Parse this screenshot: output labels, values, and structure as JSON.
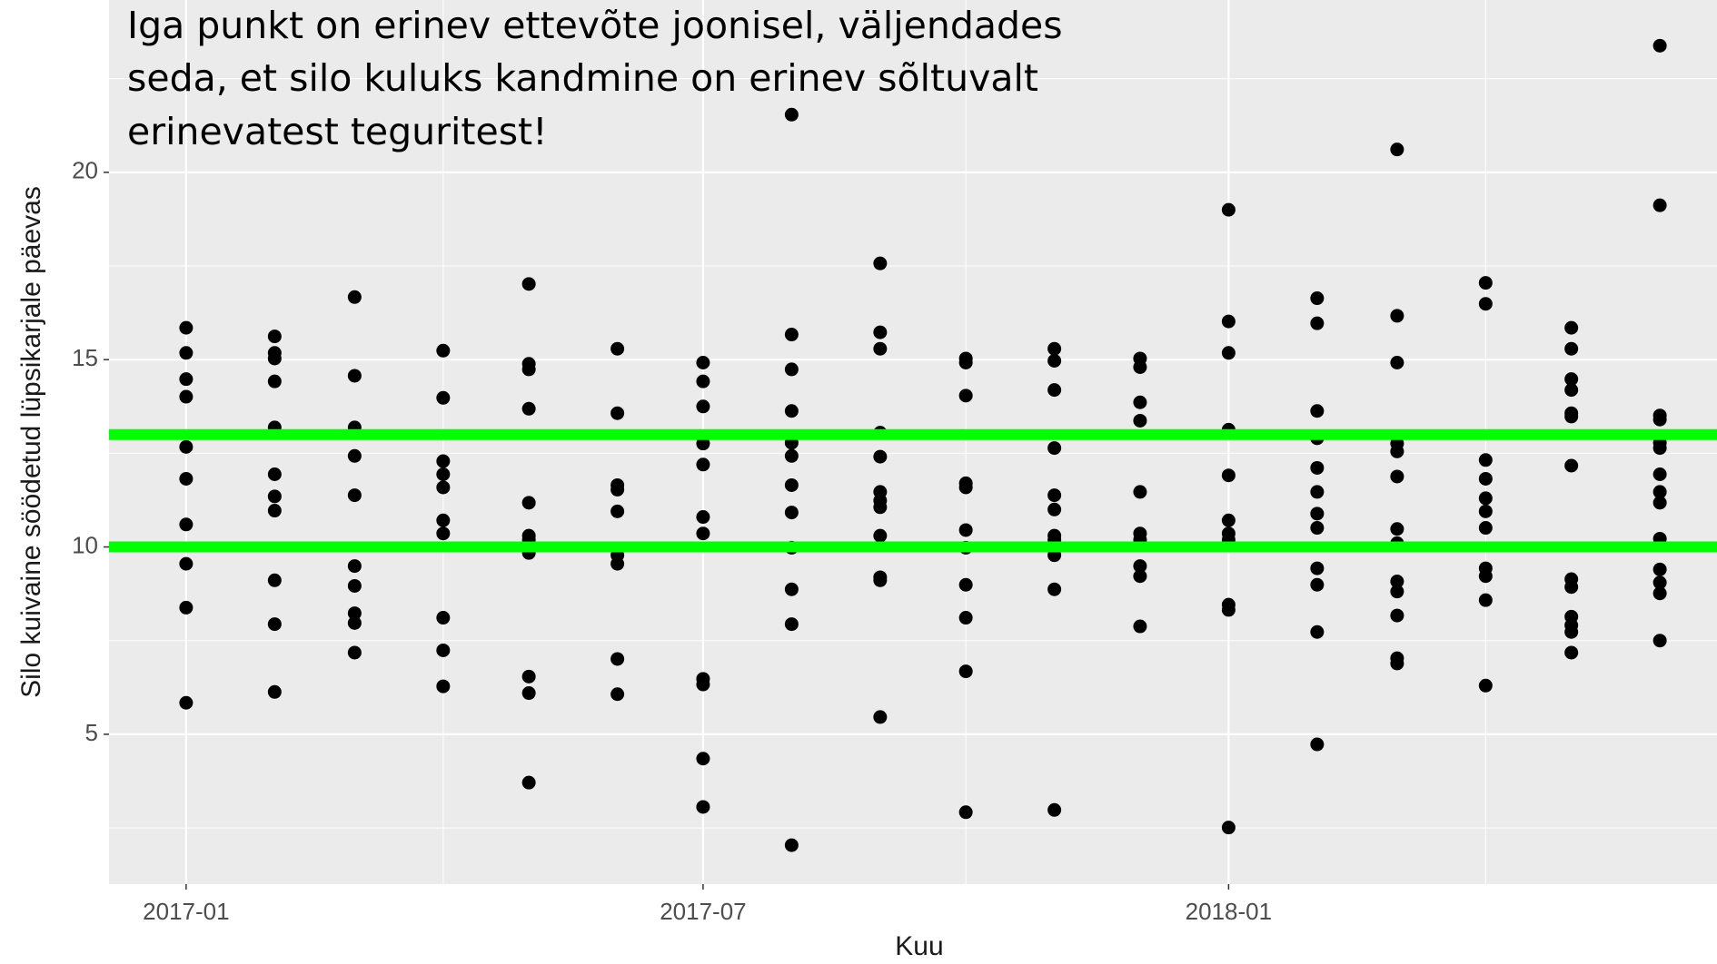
{
  "chart_data": {
    "type": "scatter",
    "annotation": [
      "Iga punkt on erinev ettevõte joonisel, väljendades",
      "seda, et silo kuluks kandmine on erinev sõltuvalt",
      "erinevatest teguritest!"
    ],
    "x_label": "Kuu",
    "y_label": "Silo kuivaine söödetud lüpsikarjale päevas",
    "x": [
      "2017-01",
      "2017-02",
      "2017-03",
      "2017-04",
      "2017-05",
      "2017-06",
      "2017-07",
      "2017-08",
      "2017-09",
      "2017-10",
      "2017-11",
      "2017-12",
      "2018-01",
      "2018-02",
      "2018-03",
      "2018-04",
      "2018-05",
      "2018-06"
    ],
    "values": [
      [
        15.85,
        15.18,
        14.48,
        14.01,
        12.67,
        11.82,
        10.6,
        9.55,
        8.38,
        5.84
      ],
      [
        15.62,
        15.18,
        15.03,
        14.42,
        13.19,
        11.94,
        11.35,
        10.97,
        9.11,
        7.94,
        6.13
      ],
      [
        16.67,
        14.57,
        13.19,
        12.43,
        11.38,
        9.49,
        8.96,
        8.23,
        7.97,
        7.18
      ],
      [
        15.24,
        13.98,
        12.29,
        11.94,
        11.59,
        10.71,
        10.36,
        8.11,
        7.24,
        6.28
      ],
      [
        17.02,
        14.89,
        14.74,
        13.69,
        11.18,
        10.3,
        10.19,
        9.84,
        6.54,
        6.1,
        3.71
      ],
      [
        15.29,
        13.57,
        11.65,
        11.53,
        10.95,
        9.78,
        9.55,
        7.01,
        6.07
      ],
      [
        14.92,
        14.42,
        13.75,
        12.76,
        12.2,
        10.8,
        10.36,
        6.48,
        6.33,
        4.35,
        3.06
      ],
      [
        21.54,
        15.67,
        14.74,
        13.63,
        12.78,
        12.43,
        11.65,
        10.92,
        9.98,
        8.87,
        7.94,
        2.04
      ],
      [
        17.57,
        15.73,
        15.29,
        13.05,
        12.41,
        11.47,
        11.24,
        11.06,
        10.3,
        9.19,
        9.11,
        5.46
      ],
      [
        15.03,
        14.92,
        14.04,
        11.7,
        11.59,
        10.45,
        9.98,
        8.99,
        8.11,
        6.68,
        2.92
      ],
      [
        15.29,
        14.97,
        14.19,
        12.64,
        11.38,
        11.0,
        10.3,
        10.19,
        9.78,
        8.87,
        2.98
      ],
      [
        15.03,
        14.8,
        13.86,
        13.37,
        11.47,
        10.36,
        10.19,
        9.49,
        9.22,
        7.88
      ],
      [
        19.0,
        16.02,
        15.18,
        13.13,
        11.91,
        10.71,
        10.36,
        10.19,
        8.46,
        8.32,
        2.51
      ],
      [
        16.64,
        15.97,
        13.63,
        12.9,
        12.11,
        11.47,
        10.89,
        10.51,
        9.43,
        8.99,
        7.73,
        4.73
      ],
      [
        20.61,
        16.17,
        14.92,
        12.76,
        12.55,
        11.88,
        10.48,
        10.1,
        9.08,
        8.81,
        8.17,
        7.03,
        6.89
      ],
      [
        17.05,
        16.49,
        12.32,
        11.82,
        11.3,
        10.95,
        10.51,
        9.43,
        9.22,
        8.58,
        6.3
      ],
      [
        15.85,
        15.29,
        14.48,
        14.19,
        13.57,
        13.48,
        12.17,
        9.14,
        8.93,
        8.14,
        7.91,
        7.73,
        7.18
      ],
      [
        23.38,
        19.12,
        13.51,
        13.4,
        12.78,
        12.64,
        11.94,
        11.47,
        11.18,
        10.22,
        9.4,
        9.05,
        8.76,
        7.5
      ]
    ],
    "color": "#000000",
    "xlim": [
      "2016-12-05",
      "2018-06-21"
    ],
    "xticks": [
      "2017-01",
      "2017-07",
      "2018-01"
    ],
    "xticks_minor": [
      "2017-04",
      "2017-10",
      "2018-04"
    ],
    "ylim": [
      1.0,
      24.6
    ],
    "yticks": [
      5,
      10,
      15,
      20
    ],
    "yticks_minor": [
      2.5,
      7.5,
      12.5,
      17.5,
      22.5
    ],
    "grid": true,
    "hlines": [
      {
        "value": 13,
        "color": "#00ff00"
      },
      {
        "value": 10,
        "color": "#00ff00"
      }
    ]
  }
}
